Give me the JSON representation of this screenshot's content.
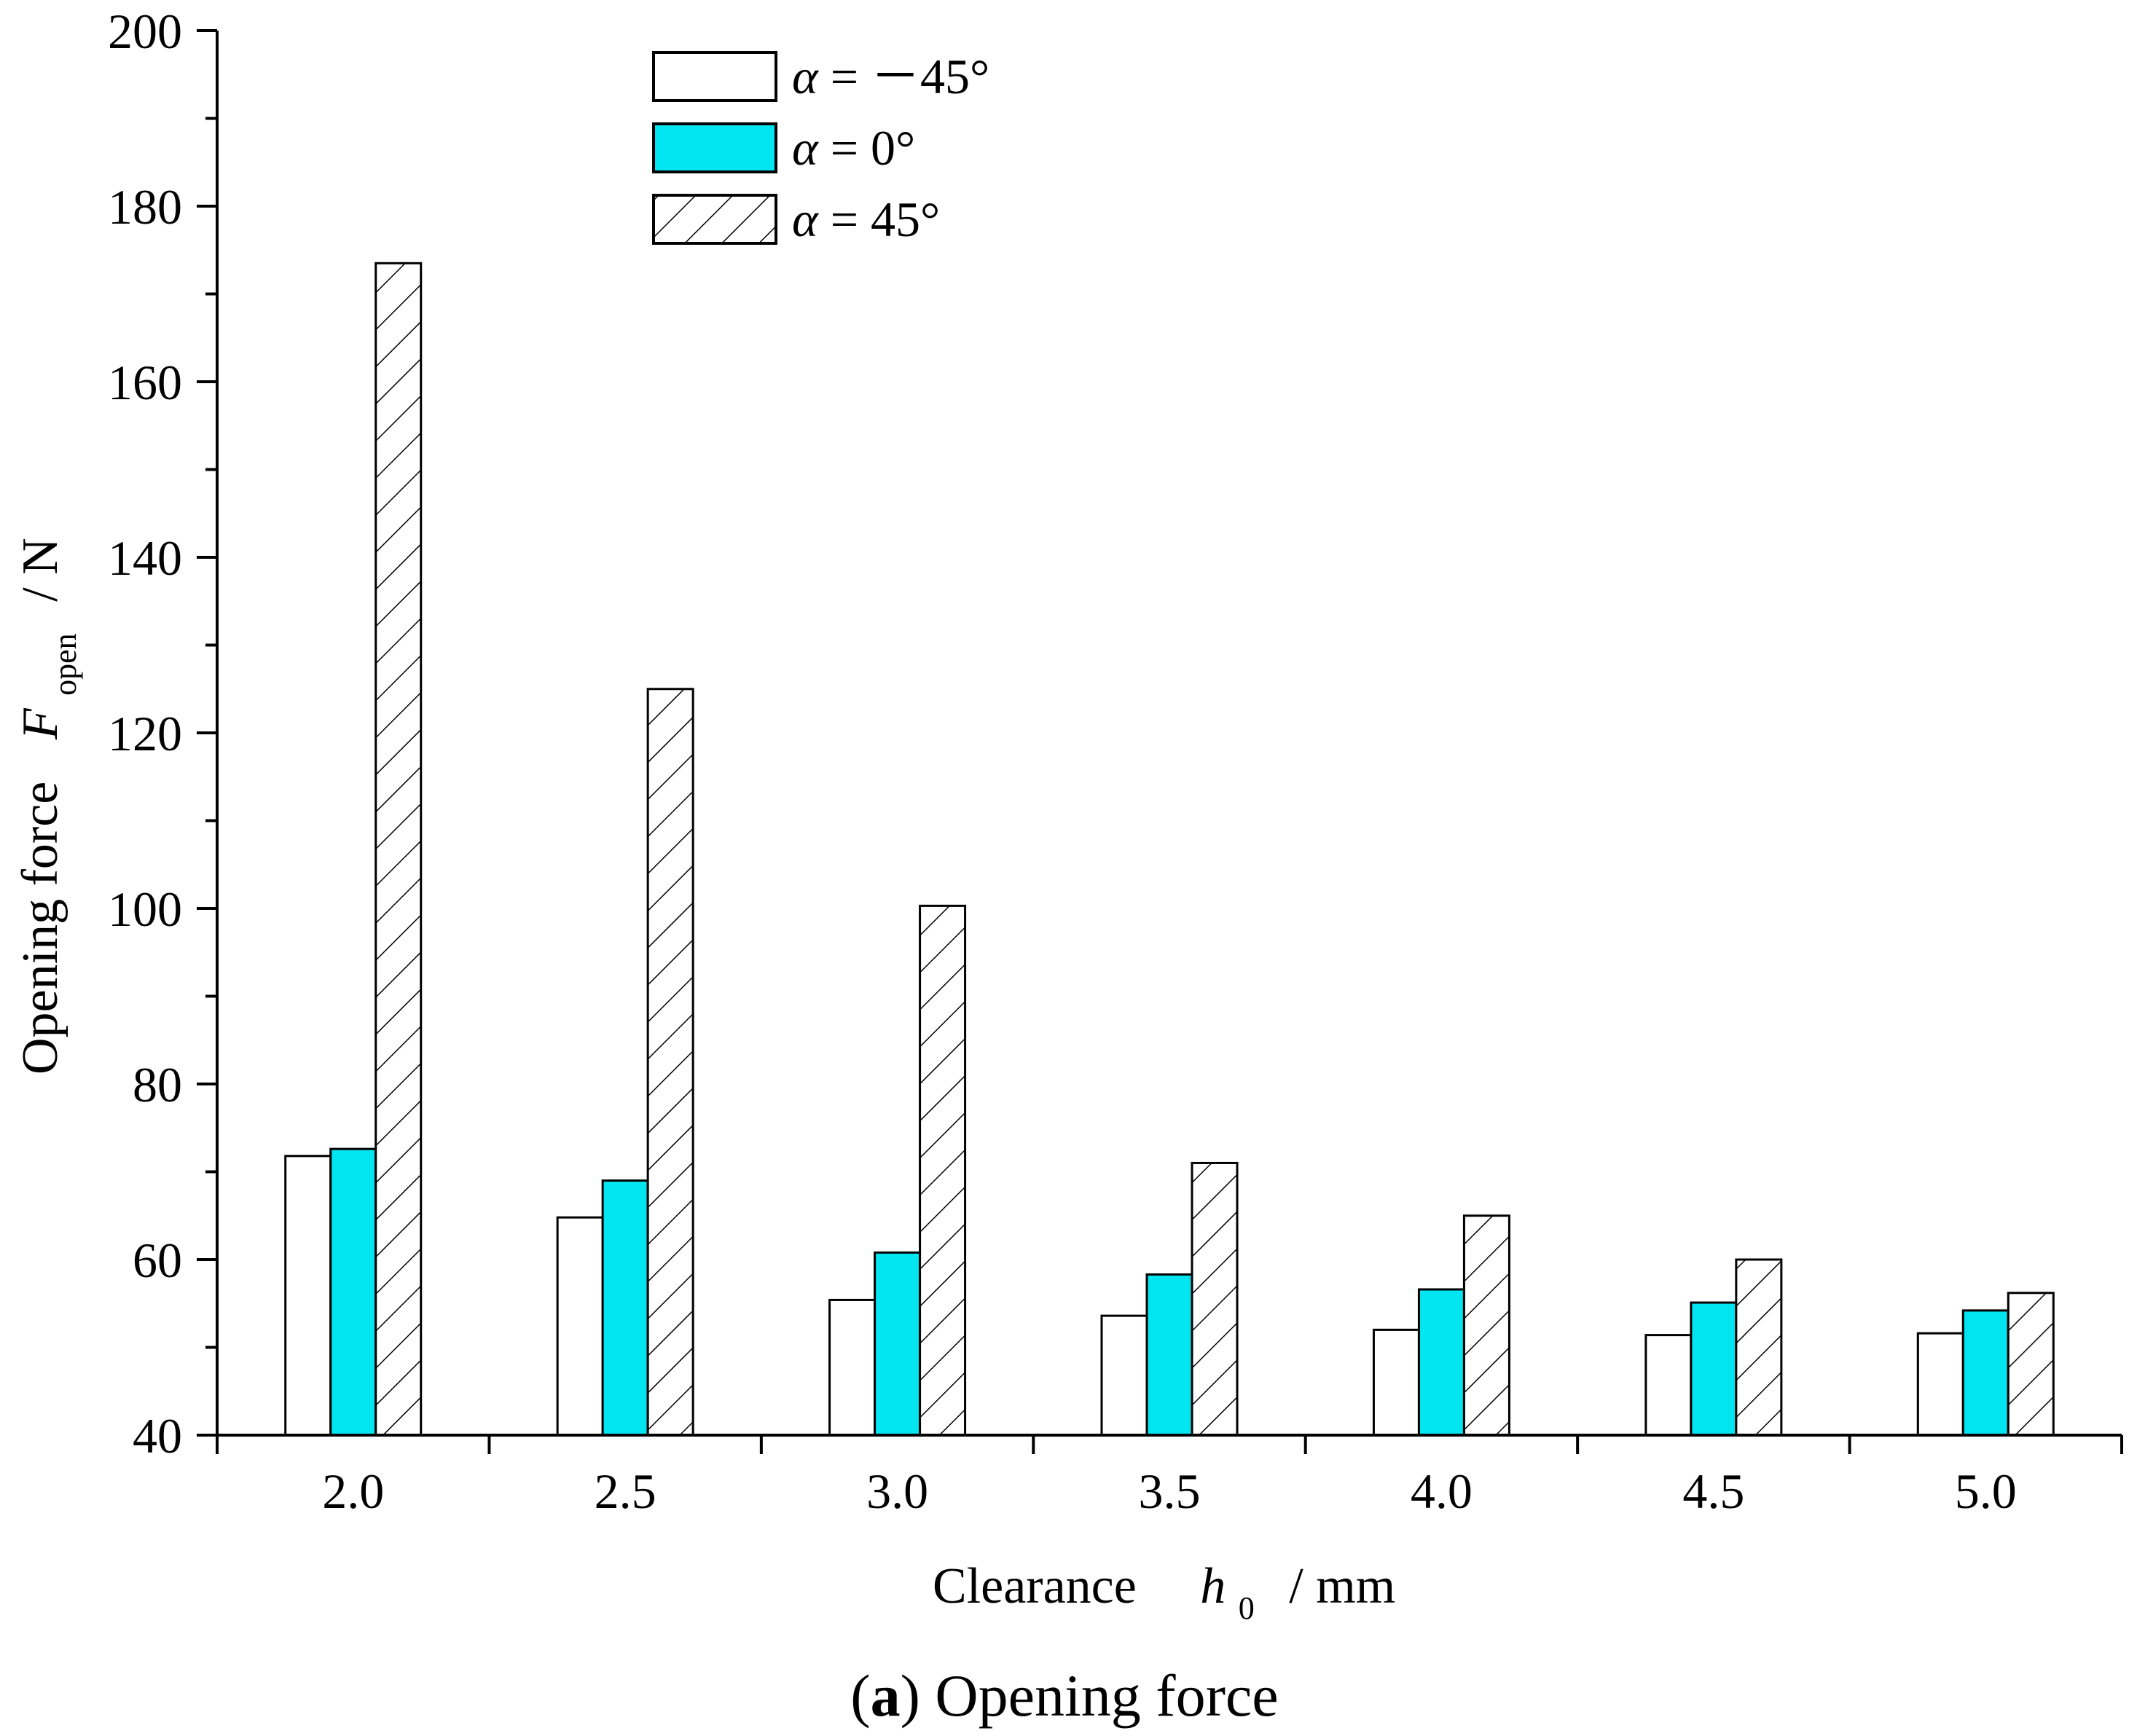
{
  "chart_data": {
    "type": "bar",
    "xlabel_main": "Clearance",
    "xlabel_var": "h",
    "xlabel_sub": "0",
    "xlabel_unit": "/  mm",
    "ylabel_main": "Opening force",
    "ylabel_var": "F",
    "ylabel_sub": "open",
    "ylabel_unit": "/ N",
    "categories": [
      "2.0",
      "2.5",
      "3.0",
      "3.5",
      "4.0",
      "4.5",
      "5.0"
    ],
    "ylim": [
      40,
      200
    ],
    "yticks": [
      40,
      60,
      80,
      100,
      120,
      140,
      160,
      180,
      200
    ],
    "legend_position": "top-center",
    "series": [
      {
        "name": "α = －45°",
        "greek": "α",
        "rest": " = －45°",
        "style": "white",
        "values": [
          71.8,
          64.8,
          55.4,
          53.6,
          52.0,
          51.4,
          51.6
        ]
      },
      {
        "name": "α = 0°",
        "greek": "α",
        "rest": " = 0°",
        "style": "cyan",
        "values": [
          72.6,
          69.0,
          60.8,
          58.3,
          56.6,
          55.1,
          54.2
        ]
      },
      {
        "name": "α = 45°",
        "greek": "α",
        "rest": " = 45°",
        "style": "hatch",
        "values": [
          173.5,
          125.0,
          100.3,
          71.0,
          65.0,
          60.0,
          56.2
        ]
      }
    ]
  },
  "colors": {
    "cyan": "#00e5f0",
    "white": "#ffffff",
    "stroke": "#000000"
  },
  "caption": {
    "letter": "a",
    "text": "Opening force"
  }
}
